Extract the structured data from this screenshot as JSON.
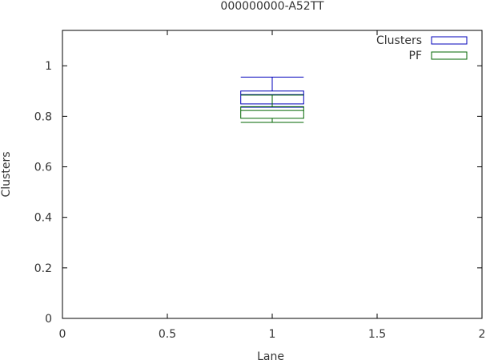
{
  "chart_data": {
    "type": "box",
    "title": "000000000-A52TT",
    "xlabel": "Lane",
    "ylabel": "Clusters",
    "xlim": [
      0,
      2
    ],
    "ylim": [
      0,
      1.14
    ],
    "xticks": [
      "0",
      "0.5",
      "1",
      "1.5",
      "2"
    ],
    "yticks": [
      "0",
      "0.2",
      "0.4",
      "0.6",
      "0.8",
      "1"
    ],
    "legend_position": "top-right",
    "grid": false,
    "series": [
      {
        "name": "Clusters",
        "color": "#0000bb",
        "x": 1,
        "width": 0.3,
        "whisker_low": 0.836,
        "q1": 0.849,
        "median": 0.886,
        "q3": 0.9,
        "whisker_high": 0.955
      },
      {
        "name": "PF",
        "color": "#006400",
        "x": 1,
        "width": 0.3,
        "whisker_low": 0.776,
        "q1": 0.792,
        "median": 0.823,
        "q3": 0.838,
        "whisker_high": 0.884
      }
    ]
  }
}
